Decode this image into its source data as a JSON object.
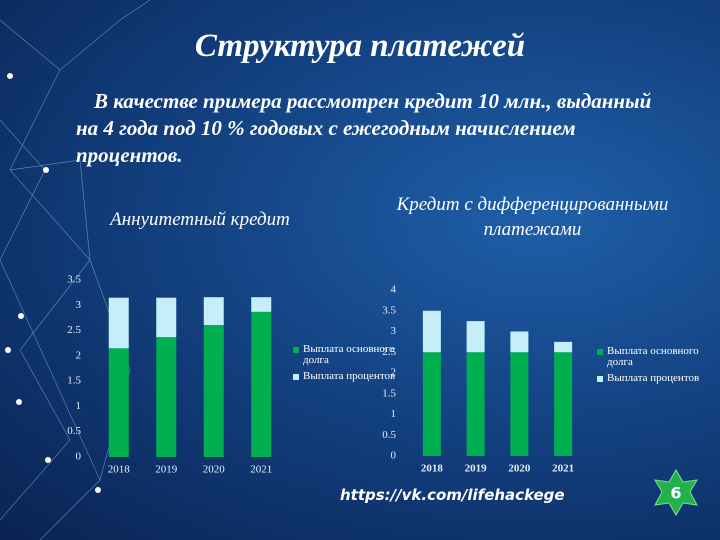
{
  "title": "Структура платежей",
  "intro": "В качестве примера рассмотрен кредит 10 млн., выданный на 4 года под 10 % годовых с ежегодным начислением процентов.",
  "chart_data": [
    {
      "type": "bar",
      "stacked": true,
      "title": "Аннуитетный кредит",
      "categories": [
        "2018",
        "2019",
        "2020",
        "2021"
      ],
      "series": [
        {
          "name": "Выплата основного долга",
          "color": "#00b050",
          "values": [
            2.15,
            2.37,
            2.61,
            2.87
          ]
        },
        {
          "name": "Выплата процентов",
          "color": "#c5eefa",
          "values": [
            1,
            0.78,
            0.55,
            0.29
          ]
        }
      ],
      "ylim": [
        0,
        3.5
      ],
      "yticks": [
        0,
        0.5,
        1,
        1.5,
        2,
        2.5,
        3,
        3.5
      ]
    },
    {
      "type": "bar",
      "stacked": true,
      "title": "Кредит с дифференцированными платежами",
      "categories": [
        "2018",
        "2019",
        "2020",
        "2021"
      ],
      "series": [
        {
          "name": "Выплата основного долга",
          "color": "#00b050",
          "values": [
            2.5,
            2.5,
            2.5,
            2.5
          ]
        },
        {
          "name": "Выплата процентов",
          "color": "#c5eefa",
          "values": [
            1,
            0.75,
            0.5,
            0.25
          ]
        }
      ],
      "ylim": [
        0,
        4
      ],
      "yticks": [
        0,
        0.5,
        1,
        1.5,
        2,
        2.5,
        3,
        3.5,
        4
      ]
    }
  ],
  "url": "https://vk.com/lifehackege",
  "page_number": "6"
}
